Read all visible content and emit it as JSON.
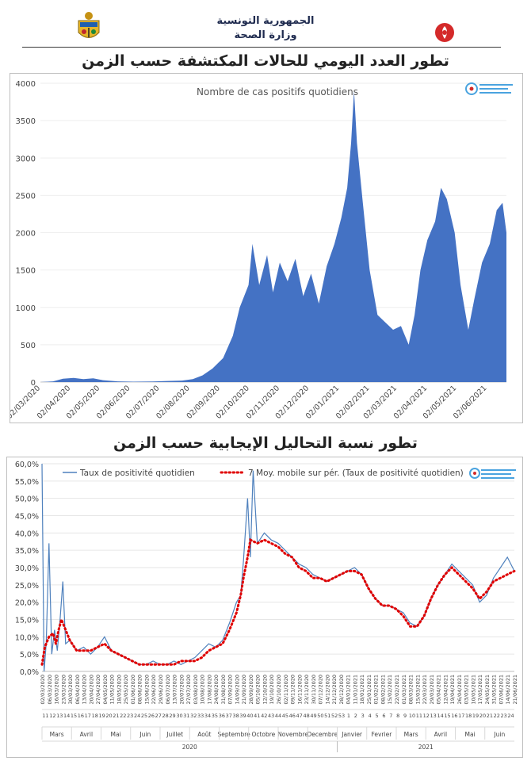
{
  "header": {
    "republic": "الجمهورية التونسية",
    "ministry": "وزارة الصحة"
  },
  "colors": {
    "area": "#4472c4",
    "line": "#4f81bd",
    "moving_avg": "#e00000",
    "title": "#222222",
    "axis": "#d9d9d9"
  },
  "chart_data": [
    {
      "type": "area",
      "heading": "تطور العدد اليومي للحالات المكتشفة حسب الزمن",
      "title": "Nombre de cas positifs quotidiens",
      "ylim": [
        0,
        4000
      ],
      "yticks": [
        "0",
        "500",
        "1000",
        "1500",
        "2000",
        "2500",
        "3000",
        "3500",
        "4000"
      ],
      "xticks": [
        "02/03/2020",
        "02/04/2020",
        "02/05/2020",
        "02/06/2020",
        "02/07/2020",
        "02/08/2020",
        "02/09/2020",
        "02/10/2020",
        "02/11/2020",
        "02/12/2020",
        "02/01/2021",
        "02/02/2021",
        "02/03/2021",
        "02/04/2021",
        "02/05/2021",
        "02/06/2021"
      ],
      "x_range": [
        "2020-03-02",
        "2021-06-22"
      ],
      "points": [
        [
          "2020-03-02",
          0
        ],
        [
          "2020-03-15",
          10
        ],
        [
          "2020-03-25",
          45
        ],
        [
          "2020-04-05",
          55
        ],
        [
          "2020-04-15",
          40
        ],
        [
          "2020-04-25",
          50
        ],
        [
          "2020-05-05",
          25
        ],
        [
          "2020-05-20",
          10
        ],
        [
          "2020-06-05",
          5
        ],
        [
          "2020-06-25",
          8
        ],
        [
          "2020-07-10",
          15
        ],
        [
          "2020-07-25",
          20
        ],
        [
          "2020-08-05",
          40
        ],
        [
          "2020-08-15",
          90
        ],
        [
          "2020-08-25",
          180
        ],
        [
          "2020-09-05",
          320
        ],
        [
          "2020-09-15",
          620
        ],
        [
          "2020-09-22",
          1000
        ],
        [
          "2020-10-01",
          1300
        ],
        [
          "2020-10-05",
          1850
        ],
        [
          "2020-10-12",
          1300
        ],
        [
          "2020-10-20",
          1700
        ],
        [
          "2020-10-26",
          1200
        ],
        [
          "2020-11-02",
          1600
        ],
        [
          "2020-11-10",
          1350
        ],
        [
          "2020-11-18",
          1650
        ],
        [
          "2020-11-26",
          1150
        ],
        [
          "2020-12-04",
          1450
        ],
        [
          "2020-12-12",
          1050
        ],
        [
          "2020-12-20",
          1550
        ],
        [
          "2020-12-28",
          1850
        ],
        [
          "2021-01-04",
          2200
        ],
        [
          "2021-01-10",
          2600
        ],
        [
          "2021-01-14",
          3200
        ],
        [
          "2021-01-17",
          3900
        ],
        [
          "2021-01-20",
          3200
        ],
        [
          "2021-01-26",
          2400
        ],
        [
          "2021-02-02",
          1500
        ],
        [
          "2021-02-10",
          900
        ],
        [
          "2021-02-18",
          800
        ],
        [
          "2021-02-26",
          700
        ],
        [
          "2021-03-06",
          750
        ],
        [
          "2021-03-14",
          500
        ],
        [
          "2021-03-20",
          900
        ],
        [
          "2021-03-26",
          1500
        ],
        [
          "2021-04-02",
          1900
        ],
        [
          "2021-04-10",
          2150
        ],
        [
          "2021-04-16",
          2600
        ],
        [
          "2021-04-22",
          2450
        ],
        [
          "2021-04-30",
          2000
        ],
        [
          "2021-05-06",
          1300
        ],
        [
          "2021-05-14",
          700
        ],
        [
          "2021-05-20",
          1100
        ],
        [
          "2021-05-28",
          1600
        ],
        [
          "2021-06-05",
          1850
        ],
        [
          "2021-06-12",
          2300
        ],
        [
          "2021-06-18",
          2400
        ],
        [
          "2021-06-22",
          2000
        ]
      ]
    },
    {
      "type": "line",
      "heading": "تطور نسبة التحاليل الإيجابية حسب الزمن",
      "ylim": [
        0,
        60
      ],
      "yticks": [
        "0,0%",
        "5,0%",
        "10,0%",
        "15,0%",
        "20,0%",
        "25,0%",
        "30,0%",
        "35,0%",
        "40,0%",
        "45,0%",
        "50,0%",
        "55,0%",
        "60,0%"
      ],
      "series": [
        {
          "name": "Taux de positivité quotidien"
        },
        {
          "name": "7 Moy. mobile sur pér. (Taux de positivité quotidien)"
        }
      ],
      "months": [
        "Mars",
        "Avril",
        "Mai",
        "Juin",
        "Juillet",
        "Août",
        "Septembre",
        "Octobre",
        "Novembre",
        "Decembre",
        "Janvier",
        "Fevrier",
        "Mars",
        "Avril",
        "Mai",
        "Juin"
      ],
      "years": [
        "2020",
        "2021"
      ],
      "week_labels": [
        "11",
        "12",
        "13",
        "14",
        "15",
        "16",
        "17",
        "18",
        "19",
        "20",
        "21",
        "22",
        "23",
        "24",
        "25",
        "26",
        "27",
        "28",
        "29",
        "30",
        "31",
        "32",
        "33",
        "34",
        "35",
        "36",
        "37",
        "38",
        "39",
        "40",
        "41",
        "42",
        "43",
        "44",
        "45",
        "46",
        "47",
        "48",
        "49",
        "50",
        "51",
        "52",
        "53",
        "1",
        "2",
        "3",
        "4",
        "5",
        "6",
        "7",
        "8",
        "9",
        "10",
        "11",
        "12",
        "13",
        "14",
        "15",
        "16",
        "17",
        "18",
        "19",
        "20",
        "21",
        "22",
        "23",
        "24"
      ],
      "date_labels": [
        "02/03/2020",
        "06/03/2020",
        "16/03/2020",
        "23/03/2020",
        "30/03/2020",
        "06/04/2020",
        "13/04/2020",
        "20/04/2020",
        "27/04/2020",
        "04/05/2020",
        "11/05/2020",
        "18/05/2020",
        "25/05/2020",
        "01/06/2020",
        "08/06/2020",
        "15/06/2020",
        "22/06/2020",
        "29/06/2020",
        "06/07/2020",
        "13/07/2020",
        "20/07/2020",
        "27/07/2020",
        "03/08/2020",
        "10/08/2020",
        "17/08/2020",
        "24/08/2020",
        "31/08/2020",
        "07/09/2020",
        "14/09/2020",
        "21/09/2020",
        "28/09/2020",
        "05/10/2020",
        "12/10/2020",
        "19/10/2020",
        "26/10/2020",
        "02/11/2020",
        "09/11/2020",
        "16/11/2020",
        "23/11/2020",
        "30/11/2020",
        "07/12/2020",
        "14/12/2020",
        "21/12/2020",
        "28/12/2020",
        "04/01/2021",
        "11/01/2021",
        "18/01/2021",
        "25/01/2021",
        "01/02/2021",
        "08/02/2021",
        "15/02/2021",
        "22/02/2021",
        "01/03/2021",
        "08/03/2021",
        "15/03/2021",
        "22/03/2021",
        "29/03/2021",
        "05/04/2021",
        "12/04/2021",
        "19/04/2021",
        "26/04/2021",
        "03/05/2021",
        "10/05/2021",
        "17/05/2021",
        "24/05/2021",
        "31/05/2021",
        "07/06/2021",
        "14/06/2021",
        "21/06/2021"
      ],
      "daily_points": [
        [
          0,
          60
        ],
        [
          0.3,
          0
        ],
        [
          0.6,
          8
        ],
        [
          1,
          37
        ],
        [
          1.4,
          5
        ],
        [
          1.8,
          12
        ],
        [
          2.2,
          6
        ],
        [
          2.6,
          15
        ],
        [
          3,
          26
        ],
        [
          3.4,
          8
        ],
        [
          4,
          9
        ],
        [
          5,
          6
        ],
        [
          6,
          7
        ],
        [
          7,
          5
        ],
        [
          8,
          7
        ],
        [
          9,
          10
        ],
        [
          10,
          6
        ],
        [
          11,
          5
        ],
        [
          12,
          4
        ],
        [
          13,
          3
        ],
        [
          14,
          2
        ],
        [
          15,
          2
        ],
        [
          16,
          3
        ],
        [
          17,
          2
        ],
        [
          18,
          2
        ],
        [
          19,
          3
        ],
        [
          20,
          2
        ],
        [
          21,
          3
        ],
        [
          22,
          4
        ],
        [
          23,
          6
        ],
        [
          24,
          8
        ],
        [
          25,
          7
        ],
        [
          26,
          9
        ],
        [
          27,
          14
        ],
        [
          28,
          20
        ],
        [
          28.6,
          22
        ],
        [
          29,
          32
        ],
        [
          29.6,
          50
        ],
        [
          30,
          33
        ],
        [
          30.4,
          58
        ],
        [
          31,
          37
        ],
        [
          32,
          40
        ],
        [
          33,
          38
        ],
        [
          34,
          37
        ],
        [
          35,
          35
        ],
        [
          36,
          33
        ],
        [
          37,
          31
        ],
        [
          38,
          30
        ],
        [
          39,
          28
        ],
        [
          40,
          27
        ],
        [
          41,
          26
        ],
        [
          42,
          27
        ],
        [
          43,
          28
        ],
        [
          44,
          29
        ],
        [
          45,
          30
        ],
        [
          46,
          28
        ],
        [
          47,
          24
        ],
        [
          48,
          21
        ],
        [
          49,
          19
        ],
        [
          50,
          19
        ],
        [
          51,
          18
        ],
        [
          52,
          17
        ],
        [
          53,
          14
        ],
        [
          54,
          13
        ],
        [
          55,
          16
        ],
        [
          56,
          21
        ],
        [
          57,
          25
        ],
        [
          58,
          28
        ],
        [
          59,
          31
        ],
        [
          60,
          29
        ],
        [
          61,
          27
        ],
        [
          62,
          25
        ],
        [
          63,
          20
        ],
        [
          64,
          22
        ],
        [
          65,
          27
        ],
        [
          66,
          30
        ],
        [
          67,
          33
        ],
        [
          68,
          29
        ]
      ],
      "moving_avg_points": [
        [
          0,
          2
        ],
        [
          0.4,
          7
        ],
        [
          1,
          10
        ],
        [
          1.6,
          11
        ],
        [
          2,
          8
        ],
        [
          2.4,
          12
        ],
        [
          2.8,
          15
        ],
        [
          3.2,
          13
        ],
        [
          4,
          9
        ],
        [
          5,
          6
        ],
        [
          6,
          6
        ],
        [
          7,
          6
        ],
        [
          8,
          7
        ],
        [
          9,
          8
        ],
        [
          10,
          6
        ],
        [
          11,
          5
        ],
        [
          12,
          4
        ],
        [
          13,
          3
        ],
        [
          14,
          2
        ],
        [
          15,
          2
        ],
        [
          16,
          2
        ],
        [
          17,
          2
        ],
        [
          18,
          2
        ],
        [
          19,
          2
        ],
        [
          20,
          3
        ],
        [
          21,
          3
        ],
        [
          22,
          3
        ],
        [
          23,
          4
        ],
        [
          24,
          6
        ],
        [
          25,
          7
        ],
        [
          26,
          8
        ],
        [
          27,
          12
        ],
        [
          28,
          17
        ],
        [
          28.6,
          22
        ],
        [
          29,
          27
        ],
        [
          29.6,
          33
        ],
        [
          30,
          38
        ],
        [
          31,
          37
        ],
        [
          32,
          38
        ],
        [
          33,
          37
        ],
        [
          34,
          36
        ],
        [
          35,
          34
        ],
        [
          36,
          33
        ],
        [
          37,
          30
        ],
        [
          38,
          29
        ],
        [
          39,
          27
        ],
        [
          40,
          27
        ],
        [
          41,
          26
        ],
        [
          42,
          27
        ],
        [
          43,
          28
        ],
        [
          44,
          29
        ],
        [
          45,
          29
        ],
        [
          46,
          28
        ],
        [
          47,
          24
        ],
        [
          48,
          21
        ],
        [
          49,
          19
        ],
        [
          50,
          19
        ],
        [
          51,
          18
        ],
        [
          52,
          16
        ],
        [
          53,
          13
        ],
        [
          54,
          13
        ],
        [
          55,
          16
        ],
        [
          56,
          21
        ],
        [
          57,
          25
        ],
        [
          58,
          28
        ],
        [
          59,
          30
        ],
        [
          60,
          28
        ],
        [
          61,
          26
        ],
        [
          62,
          24
        ],
        [
          63,
          21
        ],
        [
          64,
          23
        ],
        [
          65,
          26
        ],
        [
          66,
          27
        ],
        [
          67,
          28
        ],
        [
          68,
          29
        ]
      ]
    }
  ]
}
